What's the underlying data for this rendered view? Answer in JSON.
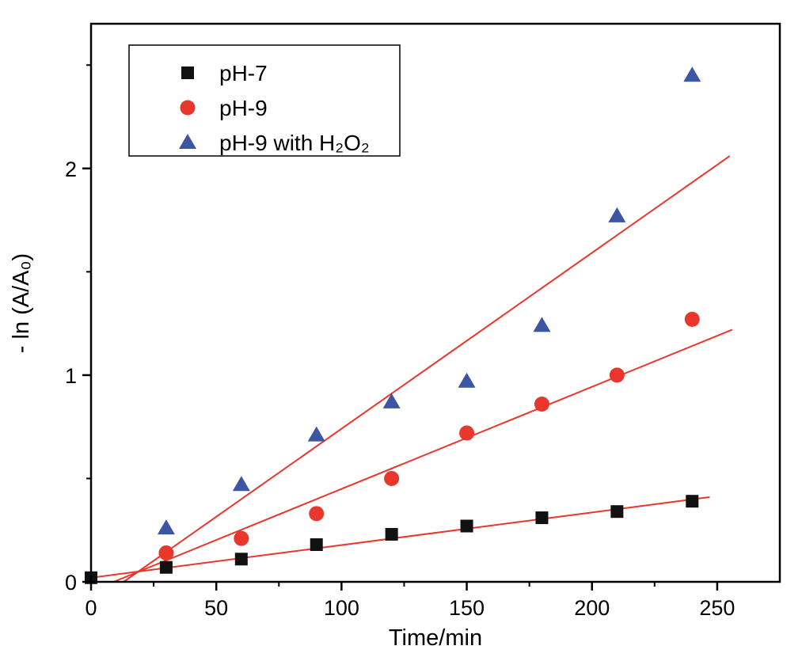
{
  "figure": {
    "background": "#ffffff",
    "axis_color": "#000000",
    "fit_line_color": "#e8372c"
  },
  "chart_data": {
    "type": "scatter",
    "title": "",
    "xlabel": "Time/min",
    "ylabel": "- ln (A/A₀)",
    "xlim": [
      0,
      275
    ],
    "ylim": [
      0,
      2.7
    ],
    "x_major_ticks": [
      0,
      50,
      100,
      150,
      200,
      250
    ],
    "x_minor_step": 25,
    "y_major_ticks": [
      0,
      1,
      2
    ],
    "y_minor_step": 0.5,
    "grid": false,
    "legend_position": "top-left",
    "series": [
      {
        "name": "pH-7",
        "marker": "square",
        "color": "#111111",
        "x": [
          0,
          30,
          60,
          90,
          120,
          150,
          180,
          210,
          240
        ],
        "y": [
          0.02,
          0.07,
          0.11,
          0.18,
          0.23,
          0.27,
          0.31,
          0.34,
          0.39
        ]
      },
      {
        "name": "pH-9",
        "marker": "circle",
        "color": "#e8372c",
        "x": [
          30,
          60,
          90,
          120,
          150,
          180,
          210,
          240
        ],
        "y": [
          0.14,
          0.21,
          0.33,
          0.5,
          0.72,
          0.86,
          1.0,
          1.27
        ]
      },
      {
        "name": "pH-9 with H₂O₂",
        "marker": "triangle",
        "color": "#3c55a5",
        "x": [
          30,
          60,
          90,
          120,
          150,
          180,
          210,
          240
        ],
        "y": [
          0.26,
          0.47,
          0.71,
          0.87,
          0.97,
          1.24,
          1.77,
          2.45
        ]
      }
    ],
    "fit_lines": [
      {
        "color": "#e8372c",
        "x1": 0,
        "y1": 0.02,
        "x2": 247,
        "y2": 0.41
      },
      {
        "color": "#e8372c",
        "x1": 9,
        "y1": 0.0,
        "x2": 256,
        "y2": 1.22
      },
      {
        "color": "#e8372c",
        "x1": 13,
        "y1": 0.0,
        "x2": 255,
        "y2": 2.06
      }
    ]
  }
}
